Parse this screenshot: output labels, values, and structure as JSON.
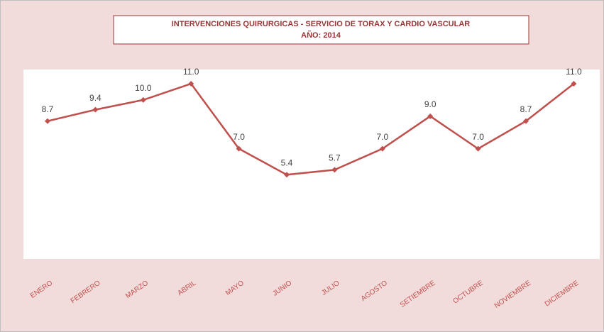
{
  "chart_data": {
    "type": "line",
    "title": "INTERVENCIONES QUIRURGICAS - SERVICIO DE TORAX Y CARDIO VASCULAR",
    "subtitle": "AÑO: 2014",
    "categories": [
      "ENERO",
      "FEBRERO",
      "MARZO",
      "ABRIL",
      "MAYO",
      "JUNIO",
      "JULIO",
      "AGOSTO",
      "SETIEMBRE",
      "OCTUBRE",
      "NOVIEMBRE",
      "DICIEMBRE"
    ],
    "values": [
      8.7,
      9.4,
      10,
      11,
      7,
      5.4,
      5.7,
      7,
      9,
      7,
      8.7,
      11
    ],
    "value_labels": [
      "8.7",
      "9.4",
      "10.0",
      "11.0",
      "7.0",
      "5.4",
      "5.7",
      "7.0",
      "9.0",
      "7.0",
      "8.7",
      "11.0"
    ],
    "color": "#c0504d"
  }
}
